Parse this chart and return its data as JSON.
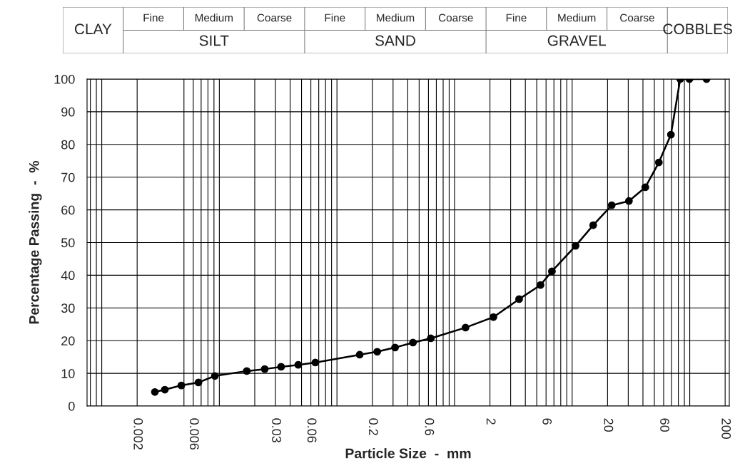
{
  "chart_data": {
    "type": "line",
    "xlabel": "Particle Size  -  mm",
    "ylabel": "Percentage Passing  -  %",
    "x": [
      0.00283,
      0.00344,
      0.00475,
      0.00664,
      0.00916,
      0.0171,
      0.0243,
      0.0335,
      0.0469,
      0.0655,
      0.156,
      0.22,
      0.312,
      0.443,
      0.628,
      1.24,
      2.14,
      3.54,
      5.38,
      6.73,
      10.7,
      15.1,
      21.7,
      30.4,
      41.9,
      54.6,
      69.2,
      83,
      99.5,
      139
    ],
    "series": [
      {
        "color": "#000000",
        "values": [
          4.3,
          5.0,
          6.3,
          7.2,
          9.2,
          10.7,
          11.3,
          12.0,
          12.6,
          13.3,
          15.7,
          16.6,
          17.9,
          19.4,
          20.7,
          24.0,
          27.2,
          32.7,
          37.0,
          41.2,
          49.0,
          55.3,
          61.4,
          62.7,
          66.9,
          74.5,
          83.0,
          100,
          100,
          100
        ]
      }
    ],
    "log": "x",
    "xlim": [
      0.00075,
      217
    ],
    "xticks": [
      {
        "value": 0.0008,
        "label": null
      },
      {
        "value": 0.0009,
        "label": null
      },
      {
        "value": 0.001,
        "label": null
      },
      {
        "value": 0.002,
        "label": "0.002"
      },
      {
        "value": 0.005,
        "label": null
      },
      {
        "value": 0.006,
        "label": "0.006"
      },
      {
        "value": 0.007,
        "label": null
      },
      {
        "value": 0.008,
        "label": null
      },
      {
        "value": 0.009,
        "label": null
      },
      {
        "value": 0.01,
        "label": null
      },
      {
        "value": 0.02,
        "label": null
      },
      {
        "value": 0.03,
        "label": "0.03"
      },
      {
        "value": 0.04,
        "label": null
      },
      {
        "value": 0.05,
        "label": null
      },
      {
        "value": 0.06,
        "label": "0.06"
      },
      {
        "value": 0.07,
        "label": null
      },
      {
        "value": 0.08,
        "label": null
      },
      {
        "value": 0.09,
        "label": null
      },
      {
        "value": 0.1,
        "label": null
      },
      {
        "value": 0.2,
        "label": "0.2"
      },
      {
        "value": 0.3,
        "label": null
      },
      {
        "value": 0.4,
        "label": null
      },
      {
        "value": 0.5,
        "label": null
      },
      {
        "value": 0.6,
        "label": "0.6"
      },
      {
        "value": 0.7,
        "label": null
      },
      {
        "value": 0.8,
        "label": null
      },
      {
        "value": 0.9,
        "label": null
      },
      {
        "value": 1,
        "label": null
      },
      {
        "value": 2,
        "label": "2"
      },
      {
        "value": 3,
        "label": null
      },
      {
        "value": 4,
        "label": null
      },
      {
        "value": 5,
        "label": null
      },
      {
        "value": 6,
        "label": "6"
      },
      {
        "value": 7,
        "label": null
      },
      {
        "value": 8,
        "label": null
      },
      {
        "value": 9,
        "label": null
      },
      {
        "value": 10,
        "label": null
      },
      {
        "value": 20,
        "label": "20"
      },
      {
        "value": 30,
        "label": null
      },
      {
        "value": 40,
        "label": null
      },
      {
        "value": 50,
        "label": null
      },
      {
        "value": 60,
        "label": "60"
      },
      {
        "value": 70,
        "label": null
      },
      {
        "value": 80,
        "label": null
      },
      {
        "value": 90,
        "label": null
      },
      {
        "value": 100,
        "label": null
      },
      {
        "value": 200,
        "label": "200"
      }
    ],
    "ylim": [
      0,
      100
    ],
    "yticks": [
      0,
      10,
      20,
      30,
      40,
      50,
      60,
      70,
      80,
      90,
      100
    ],
    "grid": true,
    "marker": "circle",
    "line_style": "solid",
    "annotations": [
      "CLAY",
      "Fine",
      "Medium",
      "Coarse",
      "SILT",
      "Fine",
      "Medium",
      "Coarse",
      "SAND",
      "Fine",
      "Medium",
      "Coarse",
      "GRAVEL",
      "COBBLES"
    ]
  }
}
